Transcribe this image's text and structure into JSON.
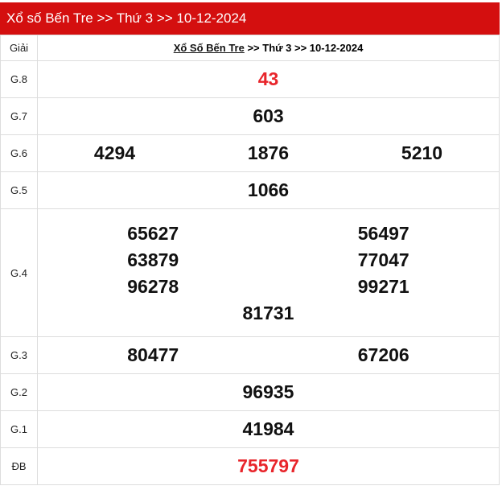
{
  "header": {
    "title": "Xổ số Bến Tre >> Thứ 3 >> 10-12-2024"
  },
  "table": {
    "col_label": "Giải",
    "caption": {
      "link": "Xổ Số Bến Tre",
      "rest": " >> Thứ 3 >> 10-12-2024"
    },
    "rows": [
      {
        "label": "G.8",
        "numbers": [
          "43"
        ]
      },
      {
        "label": "G.7",
        "numbers": [
          "603"
        ]
      },
      {
        "label": "G.6",
        "numbers": [
          "4294",
          "1876",
          "5210"
        ]
      },
      {
        "label": "G.5",
        "numbers": [
          "1066"
        ]
      },
      {
        "label": "G.4",
        "numbers": [
          "65627",
          "56497",
          "63879",
          "77047",
          "96278",
          "99271",
          "81731"
        ]
      },
      {
        "label": "G.3",
        "numbers": [
          "80477",
          "67206"
        ]
      },
      {
        "label": "G.2",
        "numbers": [
          "96935"
        ]
      },
      {
        "label": "G.1",
        "numbers": [
          "41984"
        ]
      },
      {
        "label": "ĐB",
        "numbers": [
          "755797"
        ]
      }
    ]
  },
  "colors": {
    "header_bg": "#d40f0f",
    "highlight": "#e8252b"
  }
}
